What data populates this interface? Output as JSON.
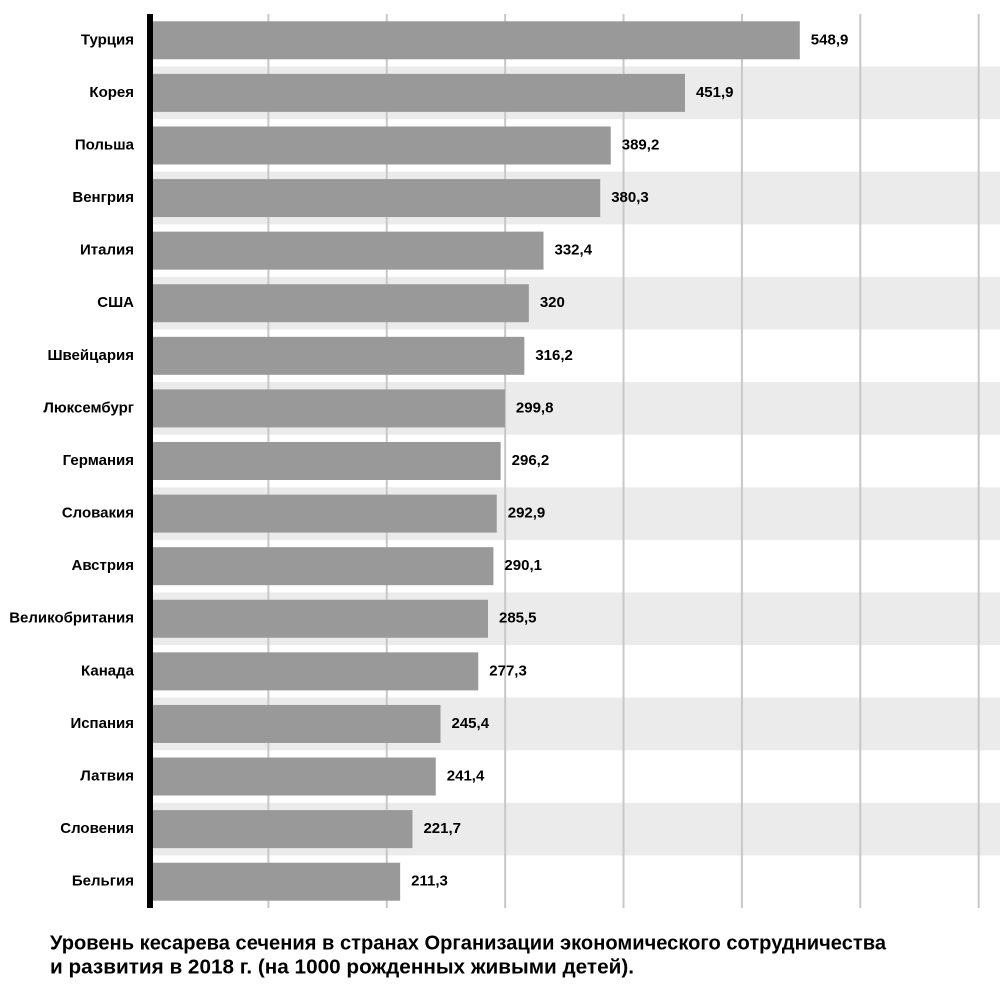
{
  "chart_data": {
    "type": "bar",
    "orientation": "horizontal",
    "title": [
      "Уровень кесарева сечения в странах Организации экономического сотрудничества",
      "и развития в 2018 г. (на 1000 рожденных живыми детей)."
    ],
    "categories": [
      "Турция",
      "Корея",
      "Польша",
      "Венгрия",
      "Италия",
      "США",
      "Швейцария",
      "Люксембург",
      "Германия",
      "Словакия",
      "Австрия",
      "Великобритания",
      "Канада",
      "Испания",
      "Латвия",
      "Словения",
      "Бельгия"
    ],
    "values": [
      548.9,
      451.9,
      389.2,
      380.3,
      332.4,
      320,
      316.2,
      299.8,
      296.2,
      292.9,
      290.1,
      285.5,
      277.3,
      245.4,
      241.4,
      221.7,
      211.3
    ],
    "value_labels": [
      "548,9",
      "451,9",
      "389,2",
      "380,3",
      "332,4",
      "320",
      "316,2",
      "299,8",
      "296,2",
      "292,9",
      "290,1",
      "285,5",
      "277,3",
      "245,4",
      "241,4",
      "221,7",
      "211,3"
    ],
    "color": "#999999",
    "xlim": [
      0,
      718
    ],
    "xticks": [
      0,
      100,
      200,
      300,
      400,
      500,
      600,
      700
    ],
    "grid": true
  }
}
